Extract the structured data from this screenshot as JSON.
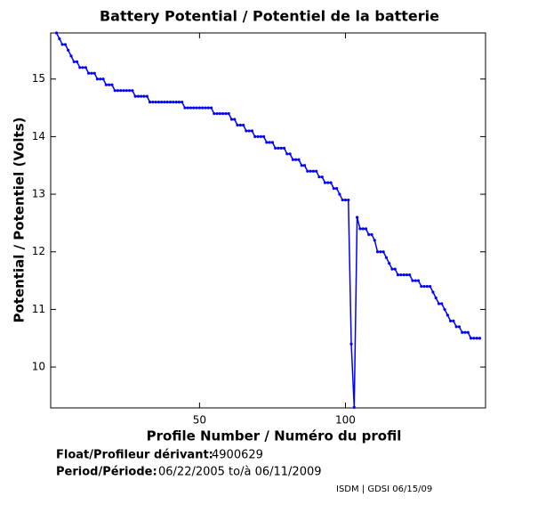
{
  "chart_data": {
    "type": "line",
    "title": "Battery Potential / Potentiel de la batterie",
    "xlabel": "Profile Number / Numéro du profil",
    "ylabel": "Potential / Potentiel (Volts)",
    "xlim": [
      -1,
      148
    ],
    "xticks": [
      50,
      100
    ],
    "ylim": [
      9.29,
      15.8
    ],
    "yticks": [
      10,
      11,
      12,
      13,
      14,
      15
    ],
    "series": [
      {
        "color": "#0000ff",
        "x": [
          1,
          2,
          3,
          4,
          5,
          6,
          7,
          8,
          9,
          10,
          11,
          12,
          13,
          14,
          15,
          16,
          17,
          18,
          19,
          20,
          21,
          22,
          23,
          24,
          25,
          26,
          27,
          28,
          29,
          30,
          31,
          32,
          33,
          34,
          35,
          36,
          37,
          38,
          39,
          40,
          41,
          42,
          43,
          44,
          45,
          46,
          47,
          48,
          49,
          50,
          51,
          52,
          53,
          54,
          55,
          56,
          57,
          58,
          59,
          60,
          61,
          62,
          63,
          64,
          65,
          66,
          67,
          68,
          69,
          70,
          71,
          72,
          73,
          74,
          75,
          76,
          77,
          78,
          79,
          80,
          81,
          82,
          83,
          84,
          85,
          86,
          87,
          88,
          89,
          90,
          91,
          92,
          93,
          94,
          95,
          96,
          97,
          98,
          99,
          100,
          101,
          102,
          103,
          104,
          105,
          106,
          107,
          108,
          109,
          110,
          111,
          112,
          113,
          114,
          115,
          116,
          117,
          118,
          119,
          120,
          121,
          122,
          123,
          124,
          125,
          126,
          127,
          128,
          129,
          130,
          131,
          132,
          133,
          134,
          135,
          136,
          137,
          138,
          139,
          140,
          141,
          142,
          143,
          144,
          145,
          146
        ],
        "values": [
          15.8,
          15.7,
          15.6,
          15.6,
          15.5,
          15.4,
          15.3,
          15.3,
          15.2,
          15.2,
          15.2,
          15.1,
          15.1,
          15.1,
          15,
          15,
          15,
          14.9,
          14.9,
          14.9,
          14.8,
          14.8,
          14.8,
          14.8,
          14.8,
          14.8,
          14.8,
          14.7,
          14.7,
          14.7,
          14.7,
          14.7,
          14.6,
          14.6,
          14.6,
          14.6,
          14.6,
          14.6,
          14.6,
          14.6,
          14.6,
          14.6,
          14.6,
          14.6,
          14.5,
          14.5,
          14.5,
          14.5,
          14.5,
          14.5,
          14.5,
          14.5,
          14.5,
          14.5,
          14.4,
          14.4,
          14.4,
          14.4,
          14.4,
          14.4,
          14.3,
          14.3,
          14.2,
          14.2,
          14.2,
          14.1,
          14.1,
          14.1,
          14,
          14,
          14,
          14,
          13.9,
          13.9,
          13.9,
          13.8,
          13.8,
          13.8,
          13.8,
          13.7,
          13.7,
          13.6,
          13.6,
          13.6,
          13.5,
          13.5,
          13.4,
          13.4,
          13.4,
          13.4,
          13.3,
          13.3,
          13.2,
          13.2,
          13.2,
          13.1,
          13.1,
          13,
          12.9,
          12.9,
          12.9,
          10.4,
          9.3,
          12.6,
          12.4,
          12.4,
          12.4,
          12.3,
          12.3,
          12.2,
          12,
          12,
          12,
          11.9,
          11.8,
          11.7,
          11.7,
          11.6,
          11.6,
          11.6,
          11.6,
          11.6,
          11.5,
          11.5,
          11.5,
          11.4,
          11.4,
          11.4,
          11.4,
          11.3,
          11.2,
          11.1,
          11.1,
          11,
          10.9,
          10.8,
          10.8,
          10.7,
          10.7,
          10.6,
          10.6,
          10.6,
          10.5,
          10.5,
          10.5,
          10.5
        ]
      }
    ]
  },
  "info": {
    "float_label": "Float/Profileur dérivant:",
    "float_id": "4900629",
    "period_label": "Period/Période:",
    "period": "06/22/2005 to/à 06/11/2009",
    "credit": "ISDM | GDSI 06/15/09"
  }
}
